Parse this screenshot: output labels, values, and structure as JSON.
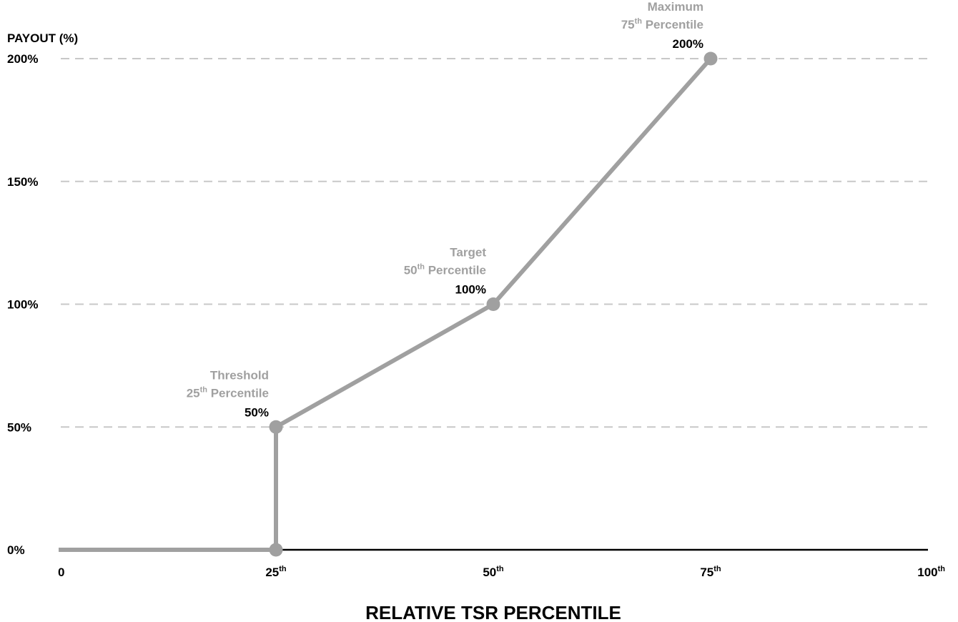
{
  "chart_data": {
    "type": "line",
    "ylabel": "PAYOUT (%)",
    "xlabel": "RELATIVE TSR PERCENTILE",
    "xlim": [
      0,
      100
    ],
    "ylim": [
      0,
      200
    ],
    "grid": "horizontal dashed",
    "y_ticks": [
      {
        "value": 0,
        "label": "0%"
      },
      {
        "value": 50,
        "label": "50%"
      },
      {
        "value": 100,
        "label": "100%"
      },
      {
        "value": 150,
        "label": "150%"
      },
      {
        "value": 200,
        "label": "200%"
      }
    ],
    "x_ticks": [
      {
        "value": 0,
        "base": "0",
        "sup": ""
      },
      {
        "value": 25,
        "base": "25",
        "sup": "th"
      },
      {
        "value": 50,
        "base": "50",
        "sup": "th"
      },
      {
        "value": 75,
        "base": "75",
        "sup": "th"
      },
      {
        "value": 100,
        "base": "100",
        "sup": "th"
      }
    ],
    "series": [
      {
        "points": [
          {
            "x": 0,
            "y": 0
          },
          {
            "x": 25,
            "y": 0
          },
          {
            "x": 25,
            "y": 50
          },
          {
            "x": 50,
            "y": 100
          },
          {
            "x": 75,
            "y": 200
          }
        ]
      }
    ],
    "markers": [
      {
        "x": 25,
        "y": 0
      },
      {
        "x": 25,
        "y": 50
      },
      {
        "x": 50,
        "y": 100
      },
      {
        "x": 75,
        "y": 200
      }
    ],
    "annotations": [
      {
        "x": 25,
        "y": 50,
        "title": "Threshold",
        "pct_base": "25",
        "pct_sup": "th",
        "pct_word": " Percentile",
        "value": "50%"
      },
      {
        "x": 50,
        "y": 100,
        "title": "Target",
        "pct_base": "50",
        "pct_sup": "th",
        "pct_word": " Percentile",
        "value": "100%"
      },
      {
        "x": 75,
        "y": 200,
        "title": "Maximum",
        "pct_base": "75",
        "pct_sup": "th",
        "pct_word": " Percentile",
        "value": "200%"
      }
    ],
    "colors": {
      "line": "#a0a0a0",
      "marker": "#a0a0a0",
      "grid": "#c8c8c8",
      "axis": "#000000",
      "annotation_text": "#a0a0a0",
      "value_text": "#000000"
    }
  }
}
